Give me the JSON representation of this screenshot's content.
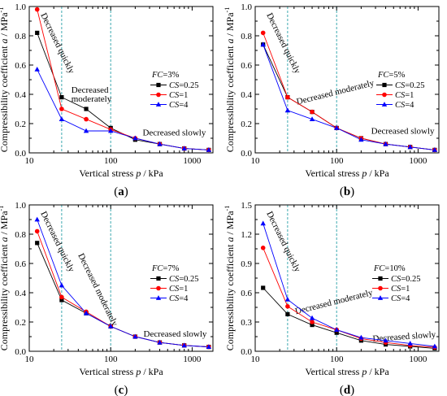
{
  "y_axis_unit": "MPa",
  "y_axis_unit_exponent": "-1",
  "chart_data": [
    {
      "type": "line",
      "panel_label": "a",
      "xlabel": "Vertical stress p / kPa",
      "ylabel": "Compressibility coefficient a / MPa-1",
      "x_scale": "log",
      "xlim": [
        10,
        1800
      ],
      "ylim": [
        0,
        1.0
      ],
      "x_ticks": [
        10,
        100,
        1000
      ],
      "y_ticks": [
        0.0,
        0.2,
        0.4,
        0.6,
        0.8,
        1.0
      ],
      "x_tick_labels": [
        "10",
        "100",
        "1000"
      ],
      "y_tick_labels": [
        "0.0",
        "0.2",
        "0.4",
        "0.6",
        "0.8",
        "1.0"
      ],
      "grid": false,
      "reference_lines_x": [
        25,
        100
      ],
      "legend_title": "FC=3%",
      "legend_position": "right",
      "annotations": [
        {
          "text": "Decreased quickly",
          "x": 16,
          "y": 0.73,
          "rotation": 64
        },
        {
          "text": "Decreased",
          "x": 52,
          "y": 0.41,
          "rotation": 0
        },
        {
          "text": "moderately",
          "x": 52,
          "y": 0.35,
          "rotation": 0
        },
        {
          "text": "Decreased slowly",
          "x": 390,
          "y": 0.12,
          "rotation": 0
        }
      ],
      "x": [
        12.5,
        25,
        50,
        100,
        200,
        400,
        800,
        1600
      ],
      "series": [
        {
          "name": "CS=0.25",
          "color": "#000000",
          "marker": "square",
          "values": [
            0.82,
            0.38,
            0.3,
            0.17,
            0.09,
            0.06,
            0.03,
            0.02
          ]
        },
        {
          "name": "CS=1",
          "color": "#ff0000",
          "marker": "circle",
          "values": [
            0.98,
            0.3,
            0.23,
            0.16,
            0.1,
            0.06,
            0.03,
            0.02
          ]
        },
        {
          "name": "CS=4",
          "color": "#0000ff",
          "marker": "triangle",
          "values": [
            0.57,
            0.23,
            0.15,
            0.15,
            0.1,
            0.06,
            0.03,
            0.02
          ]
        }
      ]
    },
    {
      "type": "line",
      "panel_label": "b",
      "xlabel": "Vertical stress p / kPa",
      "ylabel": "Compressibility coefficient a / MPa-1",
      "x_scale": "log",
      "xlim": [
        10,
        1800
      ],
      "ylim": [
        0,
        1.0
      ],
      "x_ticks": [
        10,
        100,
        1000
      ],
      "y_ticks": [
        0.0,
        0.2,
        0.4,
        0.6,
        0.8,
        1.0
      ],
      "x_tick_labels": [
        "10",
        "100",
        "1000"
      ],
      "y_tick_labels": [
        "0.0",
        "0.2",
        "0.4",
        "0.6",
        "0.8",
        "1.0"
      ],
      "grid": false,
      "reference_lines_x": [
        25,
        100
      ],
      "legend_title": "FC=5%",
      "legend_position": "right",
      "annotations": [
        {
          "text": "Decreased quickly",
          "x": 16,
          "y": 0.78,
          "rotation": 64
        },
        {
          "text": "Decreased moderately",
          "x": 52,
          "y": 0.33,
          "rotation": -14
        },
        {
          "text": "Decreased slowly",
          "x": 420,
          "y": 0.13,
          "rotation": 0
        }
      ],
      "x": [
        12.5,
        25,
        50,
        100,
        200,
        400,
        800,
        1600
      ],
      "series": [
        {
          "name": "CS=0.25",
          "color": "#000000",
          "marker": "square",
          "values": [
            0.74,
            0.38,
            0.28,
            0.17,
            0.1,
            0.06,
            0.04,
            0.02
          ]
        },
        {
          "name": "CS=1",
          "color": "#ff0000",
          "marker": "circle",
          "values": [
            0.82,
            0.38,
            0.28,
            0.17,
            0.1,
            0.06,
            0.04,
            0.02
          ]
        },
        {
          "name": "CS=4",
          "color": "#0000ff",
          "marker": "triangle",
          "values": [
            0.74,
            0.29,
            0.23,
            0.17,
            0.09,
            0.06,
            0.04,
            0.02
          ]
        }
      ]
    },
    {
      "type": "line",
      "panel_label": "c",
      "xlabel": "Vertical stress p / kPa",
      "ylabel": "Compressibility coefficient a / MPa-1",
      "x_scale": "log",
      "xlim": [
        10,
        1800
      ],
      "ylim": [
        0,
        1.0
      ],
      "x_ticks": [
        10,
        100,
        1000
      ],
      "y_ticks": [
        0.0,
        0.2,
        0.4,
        0.6,
        0.8,
        1.0
      ],
      "x_tick_labels": [
        "10",
        "100",
        "1000"
      ],
      "y_tick_labels": [
        "0.0",
        "0.2",
        "0.4",
        "0.6",
        "0.8",
        "1.0"
      ],
      "grid": false,
      "reference_lines_x": [
        25,
        100
      ],
      "legend_title": "FC=7%",
      "legend_position": "right",
      "annotations": [
        {
          "text": "Decreased quickly",
          "x": 16,
          "y": 0.72,
          "rotation": 64
        },
        {
          "text": "Decreased moderately",
          "x": 50,
          "y": 0.38,
          "rotation": 64
        },
        {
          "text": "Decreased slowly",
          "x": 400,
          "y": 0.1,
          "rotation": 0
        }
      ],
      "x": [
        12.5,
        25,
        50,
        100,
        200,
        400,
        800,
        1600
      ],
      "series": [
        {
          "name": "CS=0.25",
          "color": "#000000",
          "marker": "square",
          "values": [
            0.74,
            0.35,
            0.26,
            0.17,
            0.1,
            0.06,
            0.04,
            0.03
          ]
        },
        {
          "name": "CS=1",
          "color": "#ff0000",
          "marker": "circle",
          "values": [
            0.82,
            0.37,
            0.27,
            0.17,
            0.1,
            0.06,
            0.04,
            0.03
          ]
        },
        {
          "name": "CS=4",
          "color": "#0000ff",
          "marker": "triangle",
          "values": [
            0.9,
            0.45,
            0.26,
            0.17,
            0.1,
            0.06,
            0.04,
            0.03
          ]
        }
      ]
    },
    {
      "type": "line",
      "panel_label": "d",
      "xlabel": "Vertical stress p / kPa",
      "ylabel": "Compressibility coefficient a / MPa-1",
      "x_scale": "log",
      "xlim": [
        10,
        1800
      ],
      "ylim": [
        0,
        1.5
      ],
      "x_ticks": [
        10,
        100,
        1000
      ],
      "y_ticks": [
        0.0,
        0.3,
        0.6,
        0.9,
        1.2,
        1.5
      ],
      "x_tick_labels": [
        "10",
        "100",
        "1000"
      ],
      "y_tick_labels": [
        "0.0",
        "0.3",
        "0.6",
        "0.9",
        "1.2",
        "1.5"
      ],
      "grid": false,
      "reference_lines_x": [
        25,
        100
      ],
      "legend_title": "FC=10%",
      "legend_position": "right",
      "annotations": [
        {
          "text": "Decreased quickly",
          "x": 16,
          "y": 1.1,
          "rotation": 64
        },
        {
          "text": "Decreased moderately",
          "x": 50,
          "y": 0.38,
          "rotation": -14
        },
        {
          "text": "Decreased slowly",
          "x": 440,
          "y": 0.1,
          "rotation": -4
        }
      ],
      "x": [
        12.5,
        25,
        50,
        100,
        200,
        400,
        800,
        1600
      ],
      "series": [
        {
          "name": "CS=0.25",
          "color": "#000000",
          "marker": "square",
          "values": [
            0.65,
            0.38,
            0.27,
            0.19,
            0.11,
            0.07,
            0.05,
            0.03
          ]
        },
        {
          "name": "CS=1",
          "color": "#ff0000",
          "marker": "circle",
          "values": [
            1.06,
            0.46,
            0.3,
            0.22,
            0.13,
            0.09,
            0.06,
            0.04
          ]
        },
        {
          "name": "CS=4",
          "color": "#0000ff",
          "marker": "triangle",
          "values": [
            1.31,
            0.53,
            0.34,
            0.22,
            0.14,
            0.11,
            0.08,
            0.05
          ]
        }
      ]
    }
  ]
}
